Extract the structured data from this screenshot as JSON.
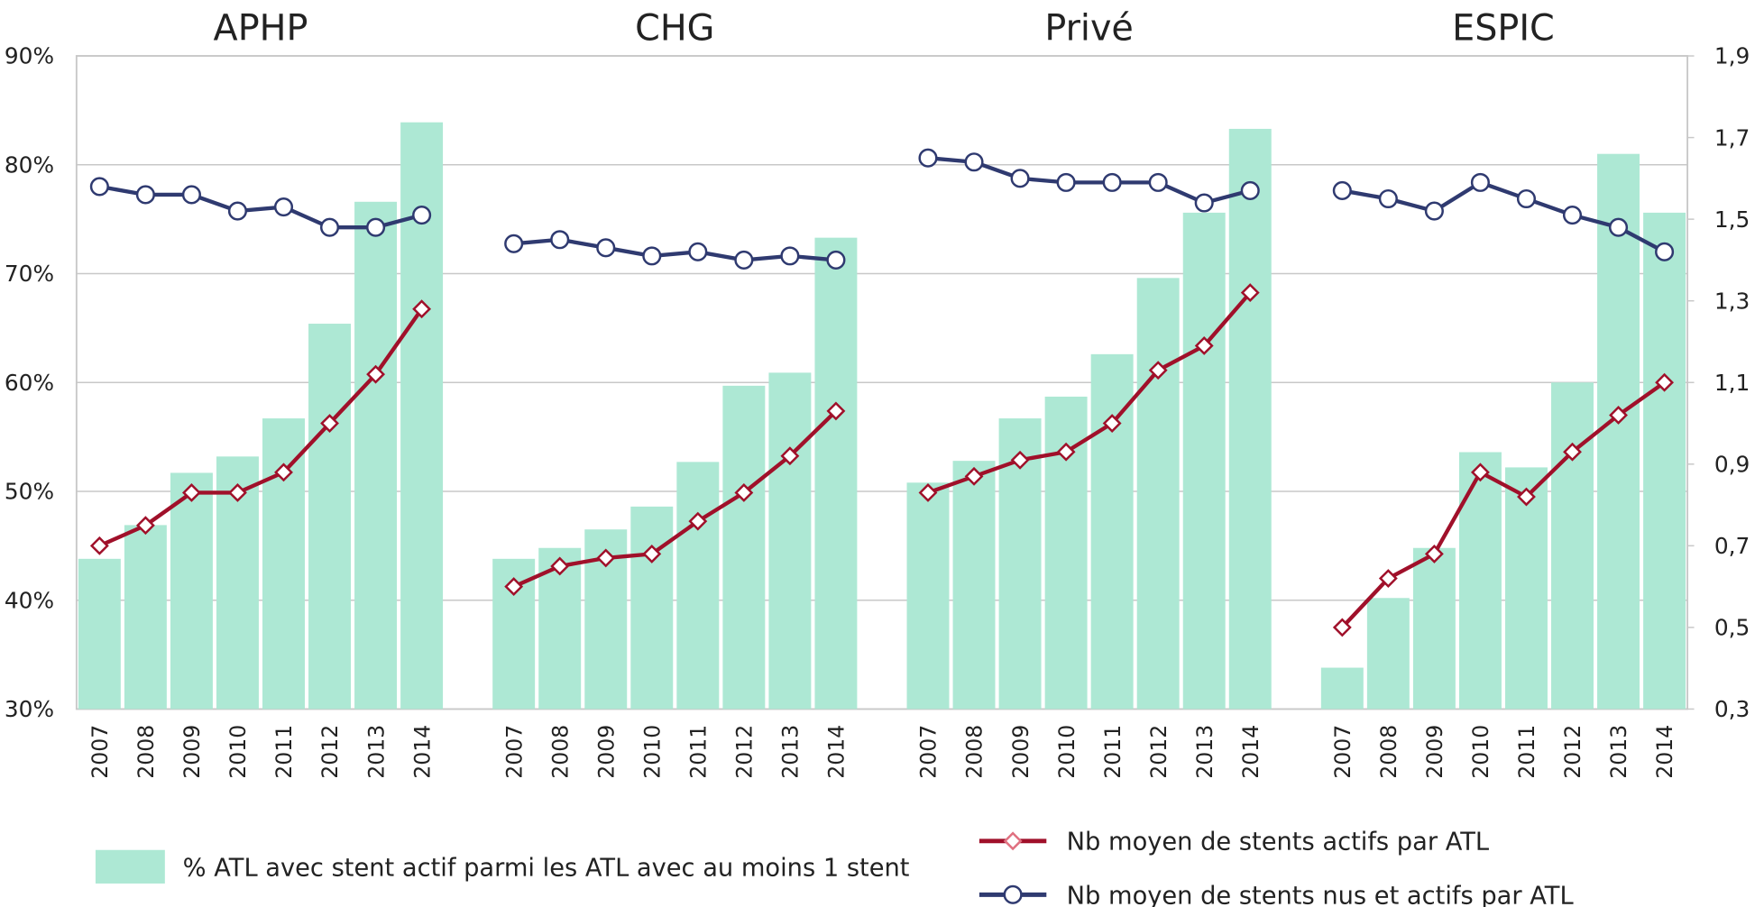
{
  "chart_data": {
    "type": "bar_line",
    "groups": [
      "APHP",
      "CHG",
      "Privé",
      "ESPIC"
    ],
    "categories": [
      "2007",
      "2008",
      "2009",
      "2010",
      "2011",
      "2012",
      "2013",
      "2014",
      "2007",
      "2008",
      "2009",
      "2010",
      "2011",
      "2012",
      "2013",
      "2014",
      "2007",
      "2008",
      "2009",
      "2010",
      "2011",
      "2012",
      "2013",
      "2014",
      "2007",
      "2008",
      "2009",
      "2010",
      "2011",
      "2012",
      "2013",
      "2014"
    ],
    "ylim": [
      30,
      90
    ],
    "yticks": [
      {
        "value": 30,
        "label": "30%"
      },
      {
        "value": 40,
        "label": "40%"
      },
      {
        "value": 50,
        "label": "50%"
      },
      {
        "value": 60,
        "label": "60%"
      },
      {
        "value": 70,
        "label": "70%"
      },
      {
        "value": 80,
        "label": "80%"
      },
      {
        "value": 90,
        "label": "90%"
      }
    ],
    "y2lim": [
      0.3,
      1.9
    ],
    "y2ticks": [
      {
        "value": 0.3,
        "label": "0,3"
      },
      {
        "value": 0.5,
        "label": "0,5"
      },
      {
        "value": 0.7,
        "label": "0,7"
      },
      {
        "value": 0.9,
        "label": "0,9"
      },
      {
        "value": 1.1,
        "label": "1,1"
      },
      {
        "value": 1.3,
        "label": "1,3"
      },
      {
        "value": 1.5,
        "label": "1,5"
      },
      {
        "value": 1.7,
        "label": "1,7"
      },
      {
        "value": 1.9,
        "label": "1,9"
      }
    ],
    "grid": true,
    "series": [
      {
        "name": "% ATL avec stent actif parmi les ATL avec au moins 1 stent",
        "type": "bar",
        "color": "#ade8d4",
        "values": [
          43.8,
          46.9,
          51.7,
          53.2,
          56.7,
          65.4,
          76.6,
          83.9,
          43.8,
          44.8,
          46.5,
          48.6,
          52.7,
          59.7,
          60.9,
          73.3,
          50.8,
          52.8,
          56.7,
          58.7,
          62.6,
          69.6,
          75.6,
          83.3,
          33.8,
          40.2,
          44.8,
          53.6,
          52.2,
          60.0,
          81.0,
          75.6
        ]
      },
      {
        "name": "Nb moyen de stents actifs par ATL",
        "type": "line",
        "marker": "diamond",
        "axis": "y2",
        "color": "#a0102a",
        "values": [
          0.7,
          0.75,
          0.83,
          0.83,
          0.88,
          1.0,
          1.12,
          1.28,
          0.6,
          0.65,
          0.67,
          0.68,
          0.76,
          0.83,
          0.92,
          1.03,
          0.83,
          0.87,
          0.91,
          0.93,
          1.0,
          1.13,
          1.19,
          1.32,
          0.5,
          0.62,
          0.68,
          0.88,
          0.82,
          0.93,
          1.02,
          1.1
        ]
      },
      {
        "name": "Nb moyen de stents nus et actifs par ATL",
        "type": "line",
        "marker": "circle",
        "axis": "y2",
        "color": "#2f3a70",
        "values": [
          1.58,
          1.56,
          1.56,
          1.52,
          1.53,
          1.48,
          1.48,
          1.51,
          1.44,
          1.45,
          1.43,
          1.41,
          1.42,
          1.4,
          1.41,
          1.4,
          1.65,
          1.64,
          1.6,
          1.59,
          1.59,
          1.59,
          1.54,
          1.57,
          1.57,
          1.55,
          1.52,
          1.59,
          1.55,
          1.51,
          1.48,
          1.42
        ]
      }
    ]
  }
}
